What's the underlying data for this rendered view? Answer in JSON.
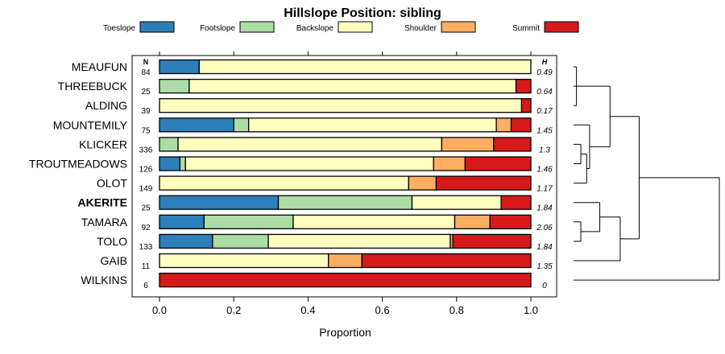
{
  "chart_data": {
    "type": "bar",
    "stacked": true,
    "orientation": "horizontal",
    "title": "Hillslope Position: sibling",
    "xlabel": "Proportion",
    "ylabel": "",
    "xlim": [
      0,
      1
    ],
    "xticks": [
      "0.0",
      "0.2",
      "0.4",
      "0.6",
      "0.8",
      "1.0"
    ],
    "legend_position": "top",
    "n_header": "N",
    "h_header": "H",
    "highlight": "AKERITE",
    "categories": [
      "MEAUFUN",
      "THREEBUCK",
      "ALDING",
      "MOUNTEMILY",
      "KLICKER",
      "TROUTMEADOWS",
      "OLOT",
      "AKERITE",
      "TAMARA",
      "TOLO",
      "GAIB",
      "WILKINS"
    ],
    "n": [
      "84",
      "25",
      "39",
      "75",
      "336",
      "126",
      "149",
      "25",
      "92",
      "133",
      "11",
      "6"
    ],
    "h": [
      "0.49",
      "0.64",
      "0.17",
      "1.45",
      "1.3",
      "1.46",
      "1.17",
      "1.84",
      "2.06",
      "1.84",
      "1.35",
      "0"
    ],
    "series": [
      {
        "name": "Toeslope",
        "color": "#2c7fb8",
        "values": [
          0.107,
          0,
          0,
          0.2,
          0,
          0.055,
          0,
          0.32,
          0.12,
          0.143,
          0,
          0
        ]
      },
      {
        "name": "Footslope",
        "color": "#abdda4",
        "values": [
          0,
          0.08,
          0,
          0.04,
          0.05,
          0.015,
          0,
          0.36,
          0.24,
          0.15,
          0,
          0
        ]
      },
      {
        "name": "Backslope",
        "color": "#ffffbf",
        "values": [
          0.893,
          0.88,
          0.975,
          0.667,
          0.71,
          0.668,
          0.671,
          0.24,
          0.435,
          0.49,
          0.455,
          0
        ]
      },
      {
        "name": "Shoulder",
        "color": "#fdae61",
        "values": [
          0,
          0,
          0,
          0.04,
          0.14,
          0.085,
          0.074,
          0,
          0.095,
          0.007,
          0.09,
          0
        ]
      },
      {
        "name": "Summit",
        "color": "#d7191c",
        "values": [
          0,
          0.04,
          0.025,
          0.053,
          0.1,
          0.177,
          0.255,
          0.08,
          0.11,
          0.21,
          0.455,
          1.0
        ]
      }
    ],
    "dendrogram": {
      "leaves": [
        "MEAUFUN",
        "THREEBUCK",
        "ALDING",
        "MOUNTEMILY",
        "KLICKER",
        "TROUTMEADOWS",
        "OLOT",
        "AKERITE",
        "TAMARA",
        "TOLO",
        "GAIB",
        "WILKINS"
      ],
      "merges": [
        [
          0,
          2,
          0.02
        ],
        [
          12,
          1,
          0.03
        ],
        [
          4,
          5,
          0.05
        ],
        [
          14,
          6,
          0.09
        ],
        [
          3,
          15,
          0.11
        ],
        [
          13,
          16,
          0.25
        ],
        [
          8,
          9,
          0.05
        ],
        [
          7,
          18,
          0.18
        ],
        [
          19,
          10,
          0.32
        ],
        [
          17,
          20,
          0.45
        ],
        [
          21,
          11,
          1.0
        ]
      ]
    }
  }
}
